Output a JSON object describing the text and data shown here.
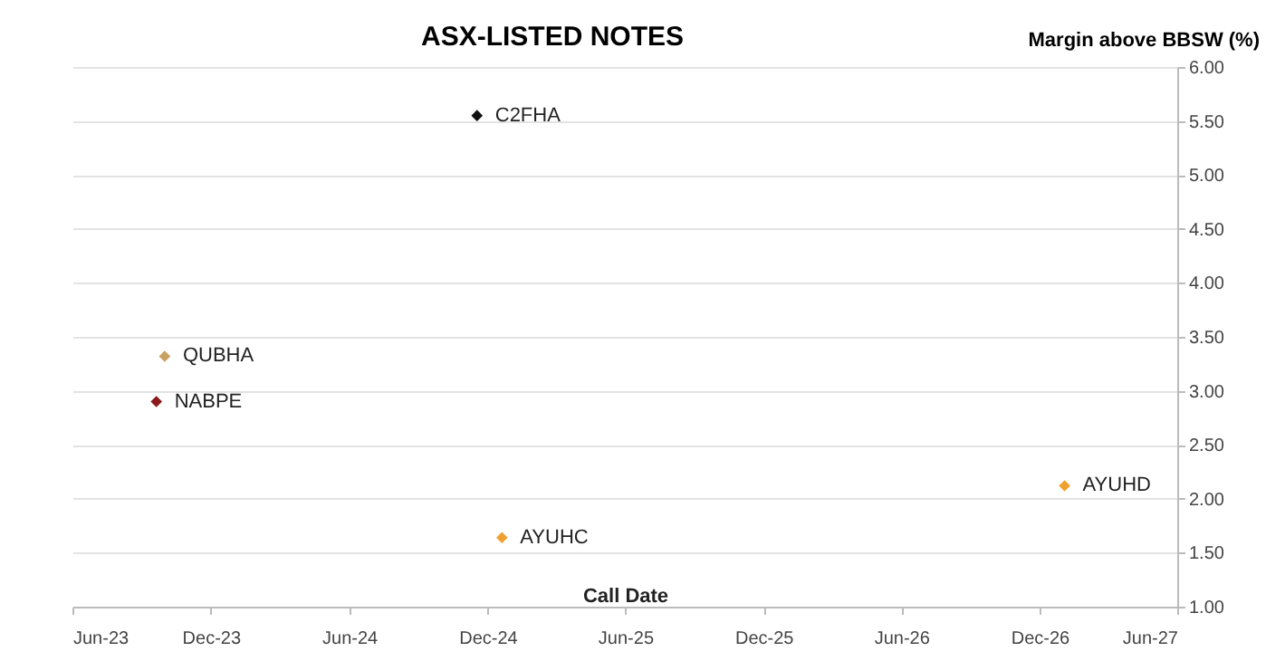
{
  "chart_data": {
    "type": "scatter",
    "title": "ASX-LISTED NOTES",
    "xlabel": "Call Date",
    "ylabel": "Margin above BBSW (%)",
    "series": [
      {
        "name": "C2FHA",
        "color": "#111111",
        "x": [
          "2024-11-17"
        ],
        "values": [
          5.55
        ]
      },
      {
        "name": "QUBHA",
        "color": "#c8a060",
        "x": [
          "2023-10-01"
        ],
        "values": [
          3.32
        ]
      },
      {
        "name": "NABPE",
        "color": "#8b1a1a",
        "x": [
          "2023-09-20"
        ],
        "values": [
          2.9
        ]
      },
      {
        "name": "AYUHC",
        "color": "#f0a030",
        "x": [
          "2024-12-20"
        ],
        "values": [
          1.64
        ]
      },
      {
        "name": "AYUHD",
        "color": "#f0a030",
        "x": [
          "2027-01-03"
        ],
        "values": [
          2.12
        ]
      }
    ],
    "xlim": [
      "2023-06",
      "2027-06"
    ],
    "xticks": [
      {
        "value": "2023-06",
        "label": "Jun-23"
      },
      {
        "value": "2023-12",
        "label": "Dec-23"
      },
      {
        "value": "2024-06",
        "label": "Jun-24"
      },
      {
        "value": "2024-12",
        "label": "Dec-24"
      },
      {
        "value": "2025-06",
        "label": "Jun-25"
      },
      {
        "value": "2025-12",
        "label": "Dec-25"
      },
      {
        "value": "2026-06",
        "label": "Jun-26"
      },
      {
        "value": "2026-12",
        "label": "Dec-26"
      },
      {
        "value": "2027-06",
        "label": "Jun-27"
      }
    ],
    "ylim": [
      1,
      6
    ],
    "yticks": [
      {
        "value": 1,
        "label": "1.00"
      },
      {
        "value": 1.5,
        "label": "1.50"
      },
      {
        "value": 2,
        "label": "2.00"
      },
      {
        "value": 2.5,
        "label": "2.50"
      },
      {
        "value": 3,
        "label": "3.00"
      },
      {
        "value": 3.5,
        "label": "3.50"
      },
      {
        "value": 4,
        "label": "4.00"
      },
      {
        "value": 4.5,
        "label": "4.50"
      },
      {
        "value": 5,
        "label": "5.00"
      },
      {
        "value": 5.5,
        "label": "5.50"
      },
      {
        "value": 6,
        "label": "6.00"
      }
    ],
    "grid": "y",
    "legend": false,
    "marker": "diamond"
  }
}
